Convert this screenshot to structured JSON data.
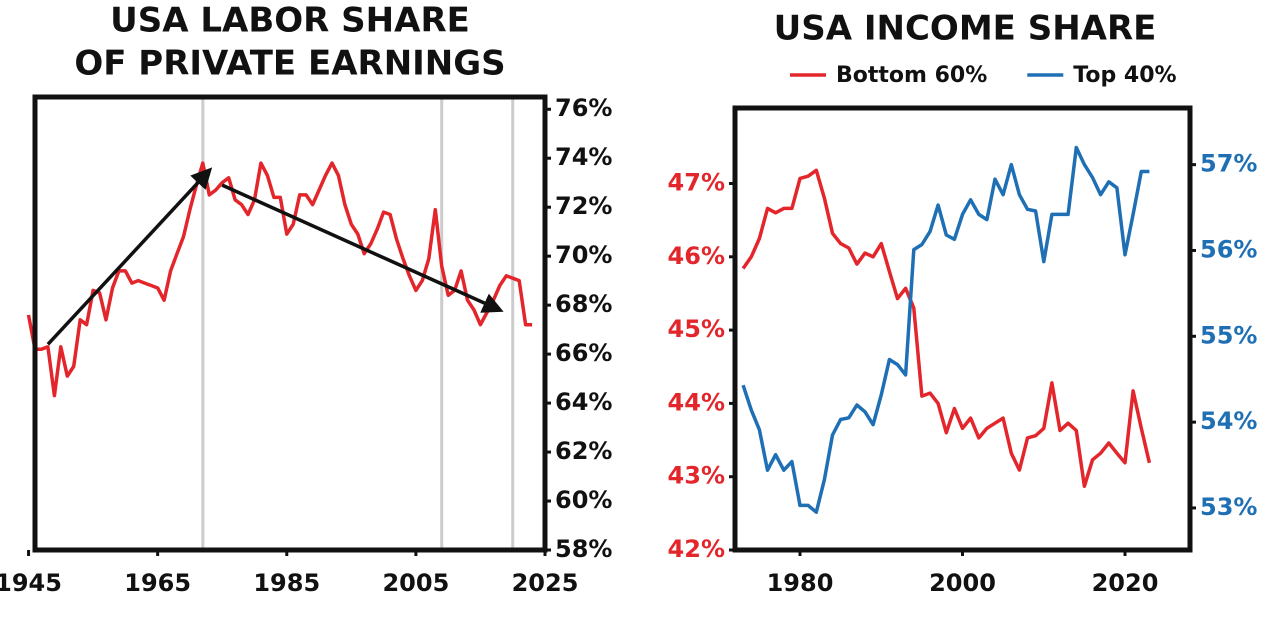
{
  "chart_data": [
    {
      "type": "line",
      "title": [
        "USA LABOR SHARE",
        "OF PRIVATE EARNINGS"
      ],
      "x": [
        1945,
        1946,
        1947,
        1948,
        1949,
        1950,
        1951,
        1952,
        1953,
        1954,
        1955,
        1956,
        1957,
        1958,
        1959,
        1960,
        1961,
        1962,
        1963,
        1964,
        1965,
        1966,
        1967,
        1968,
        1969,
        1970,
        1971,
        1972,
        1973,
        1974,
        1975,
        1976,
        1977,
        1978,
        1979,
        1980,
        1981,
        1982,
        1983,
        1984,
        1985,
        1986,
        1987,
        1988,
        1989,
        1990,
        1991,
        1992,
        1993,
        1994,
        1995,
        1996,
        1997,
        1998,
        1999,
        2000,
        2001,
        2002,
        2003,
        2004,
        2005,
        2006,
        2007,
        2008,
        2009,
        2010,
        2011,
        2012,
        2013,
        2014,
        2015,
        2016,
        2017,
        2018,
        2019,
        2020,
        2021,
        2022,
        2023
      ],
      "series": [
        {
          "color": "#e3262b",
          "values": [
            67.6,
            66.2,
            66.2,
            66.3,
            64.3,
            66.3,
            65.1,
            65.5,
            67.4,
            67.2,
            68.6,
            68.5,
            67.4,
            68.7,
            69.4,
            69.4,
            68.9,
            69.0,
            68.9,
            68.8,
            68.7,
            68.2,
            69.4,
            70.1,
            70.8,
            71.9,
            72.9,
            73.8,
            72.5,
            72.7,
            73.0,
            73.2,
            72.3,
            72.1,
            71.7,
            72.3,
            73.8,
            73.3,
            72.4,
            72.4,
            70.9,
            71.3,
            72.5,
            72.5,
            72.1,
            72.7,
            73.3,
            73.8,
            73.3,
            72.1,
            71.3,
            70.9,
            70.1,
            70.5,
            71.1,
            71.8,
            71.7,
            70.7,
            69.9,
            69.2,
            68.6,
            69.0,
            69.9,
            71.9,
            69.6,
            68.4,
            68.6,
            69.4,
            68.2,
            67.8,
            67.2,
            67.7,
            68.2,
            68.8,
            69.2,
            69.1,
            69.0,
            67.2,
            67.2
          ]
        }
      ],
      "xlim": [
        1946,
        2025
      ],
      "xticks": [
        1945,
        1965,
        1985,
        2005,
        2025
      ],
      "ylim": [
        58,
        76.5
      ],
      "yticks": [
        {
          "value": 58,
          "label": "58%"
        },
        {
          "value": 60,
          "label": "60%"
        },
        {
          "value": 62,
          "label": "62%"
        },
        {
          "value": 64,
          "label": "64%"
        },
        {
          "value": 66,
          "label": "66%"
        },
        {
          "value": 68,
          "label": "68%"
        },
        {
          "value": 70,
          "label": "70%"
        },
        {
          "value": 72,
          "label": "72%"
        },
        {
          "value": 74,
          "label": "74%"
        },
        {
          "value": 76,
          "label": "76%"
        }
      ],
      "y_axis_side": "right",
      "vlines": [
        1972,
        2009,
        2020
      ],
      "arrows": [
        {
          "from": [
            1948,
            66.4
          ],
          "to": [
            1973,
            73.5
          ]
        },
        {
          "from": [
            1975,
            72.9
          ],
          "to": [
            2018,
            67.8
          ]
        }
      ]
    },
    {
      "type": "line",
      "title": "USA INCOME SHARE",
      "x": [
        1973,
        1974,
        1975,
        1976,
        1977,
        1978,
        1979,
        1980,
        1981,
        1982,
        1983,
        1984,
        1985,
        1986,
        1987,
        1988,
        1989,
        1990,
        1991,
        1992,
        1993,
        1994,
        1995,
        1996,
        1997,
        1998,
        1999,
        2000,
        2001,
        2002,
        2003,
        2004,
        2005,
        2006,
        2007,
        2008,
        2009,
        2010,
        2011,
        2012,
        2013,
        2014,
        2015,
        2016,
        2017,
        2018,
        2019,
        2020,
        2021,
        2022,
        2023
      ],
      "series": [
        {
          "name": "Bottom 60%",
          "color": "#e3262b",
          "values": [
            45.84,
            46.0,
            46.25,
            46.66,
            46.6,
            46.66,
            46.66,
            47.07,
            47.1,
            47.18,
            46.8,
            46.32,
            46.18,
            46.12,
            45.9,
            46.05,
            46.0,
            46.18,
            45.8,
            45.43,
            45.57,
            45.3,
            44.1,
            44.14,
            44.0,
            43.6,
            43.93,
            43.66,
            43.8,
            43.53,
            43.66,
            43.73,
            43.8,
            43.32,
            43.09,
            43.53,
            43.56,
            43.66,
            44.28,
            43.63,
            43.73,
            43.63,
            42.87,
            43.23,
            43.32,
            43.46,
            43.32,
            43.19,
            44.17,
            43.66,
            43.19
          ]
        },
        {
          "name": "Top 40%",
          "color": "#1f6fb5",
          "axis": "y2",
          "values": [
            54.43,
            54.14,
            53.91,
            53.44,
            53.62,
            53.44,
            53.54,
            53.03,
            53.03,
            52.95,
            53.33,
            53.85,
            54.03,
            54.05,
            54.2,
            54.12,
            53.97,
            54.32,
            54.73,
            54.67,
            54.55,
            56.01,
            56.07,
            56.22,
            56.53,
            56.18,
            56.13,
            56.42,
            56.59,
            56.42,
            56.36,
            56.83,
            56.65,
            57.0,
            56.65,
            56.48,
            56.46,
            55.87,
            56.42,
            56.42,
            56.42,
            57.2,
            57.0,
            56.85,
            56.65,
            56.8,
            56.73,
            55.95,
            56.42,
            56.92,
            56.92
          ]
        }
      ],
      "xlim": [
        1972,
        2028
      ],
      "xticks": [
        1980,
        2000,
        2020
      ],
      "ylim": [
        42,
        48.03
      ],
      "yticks": [
        {
          "value": 42,
          "label": "42%"
        },
        {
          "value": 43,
          "label": "43%"
        },
        {
          "value": 44,
          "label": "44%"
        },
        {
          "value": 45,
          "label": "45%"
        },
        {
          "value": 46,
          "label": "46%"
        },
        {
          "value": 47,
          "label": "47%"
        }
      ],
      "y2lim": [
        52.51,
        57.66
      ],
      "y2ticks": [
        {
          "value": 53,
          "label": "53%"
        },
        {
          "value": 54,
          "label": "54%"
        },
        {
          "value": 55,
          "label": "55%"
        },
        {
          "value": 56,
          "label": "56%"
        },
        {
          "value": 57,
          "label": "57%"
        }
      ],
      "legend": "top"
    }
  ]
}
